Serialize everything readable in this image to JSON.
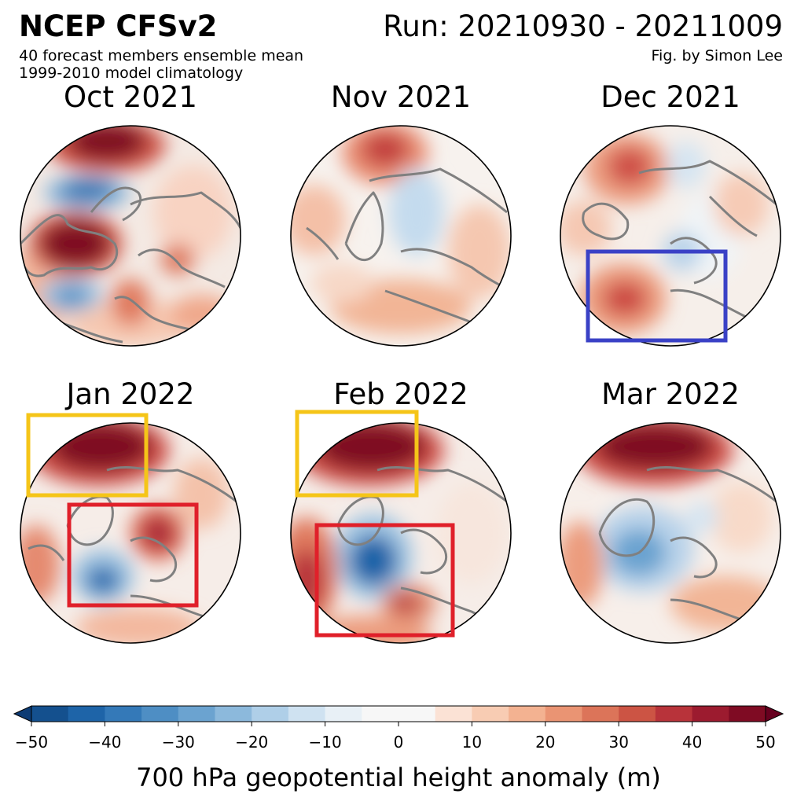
{
  "header": {
    "title": "NCEP CFSv2",
    "subtitle_1": "40 forecast members ensemble mean",
    "subtitle_2": "1999-2010 model climatology",
    "run": "Run: 20210930 - 20211009",
    "credit": "Fig. by Simon Lee"
  },
  "panels": [
    {
      "title": "Oct 2021",
      "highlights": []
    },
    {
      "title": "Nov 2021",
      "highlights": []
    },
    {
      "title": "Dec 2021",
      "highlights": [
        {
          "color": "#3a41c6",
          "region": "north-atlantic"
        }
      ]
    },
    {
      "title": "Jan 2022",
      "highlights": [
        {
          "color": "#f5c518",
          "region": "north-pacific"
        },
        {
          "color": "#e0202a",
          "region": "north-america"
        }
      ]
    },
    {
      "title": "Feb 2022",
      "highlights": [
        {
          "color": "#f5c518",
          "region": "north-pacific"
        },
        {
          "color": "#e0202a",
          "region": "north-america"
        }
      ]
    },
    {
      "title": "Mar 2022",
      "highlights": []
    }
  ],
  "colorbar": {
    "label": "700 hPa geopotential height anomaly (m)",
    "ticks": [
      "−50",
      "−40",
      "−30",
      "−20",
      "−10",
      "0",
      "10",
      "20",
      "30",
      "40",
      "50"
    ],
    "min": -50,
    "max": 50,
    "extend": "both",
    "colors": [
      "#0d3b74",
      "#14508e",
      "#1e64a8",
      "#3479b8",
      "#4e8ec4",
      "#6ba3d0",
      "#8cb9dc",
      "#afcfe8",
      "#cfe2f1",
      "#e8f0f6",
      "#f7f7f7",
      "#f7f7f7",
      "#fbe2d5",
      "#f8ccb3",
      "#f3b291",
      "#ea9473",
      "#dc7459",
      "#cc5444",
      "#b8333a",
      "#9c1b2f",
      "#7f0b23",
      "#67001f"
    ]
  }
}
